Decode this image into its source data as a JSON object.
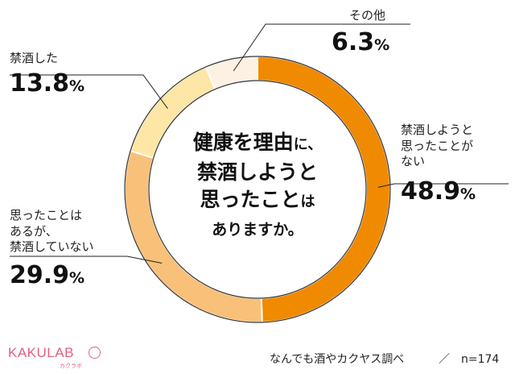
{
  "chart_data": {
    "type": "pie",
    "variant": "donut",
    "title": {
      "line1_big": "健康を理由",
      "line1_small": "に、",
      "line2": "禁酒しようと",
      "line3_big": "思ったこと",
      "line3_small": "は",
      "line4": "ありますか。"
    },
    "unit": "%",
    "slices": [
      {
        "name": "禁酒しようと思ったことがない",
        "label_lines": [
          "禁酒しようと",
          "思ったことが",
          "ない"
        ],
        "value": 48.9,
        "color": "#f08a00"
      },
      {
        "name": "思ったことはあるが、禁酒していない",
        "label_lines": [
          "思ったことは",
          "あるが、",
          "禁酒していない"
        ],
        "value": 29.9,
        "color": "#f9c079"
      },
      {
        "name": "禁酒した",
        "label_lines": [
          "禁酒した"
        ],
        "value": 13.8,
        "color": "#fde6a6"
      },
      {
        "name": "その他",
        "label_lines": [
          "その他"
        ],
        "value": 6.3,
        "color": "#fdf1e4"
      }
    ]
  },
  "footer": {
    "brand": "KAKULAB",
    "brand_sub": "カクラボ",
    "source": "なんでも酒やカクヤス調べ",
    "sample": "／　n=174"
  }
}
